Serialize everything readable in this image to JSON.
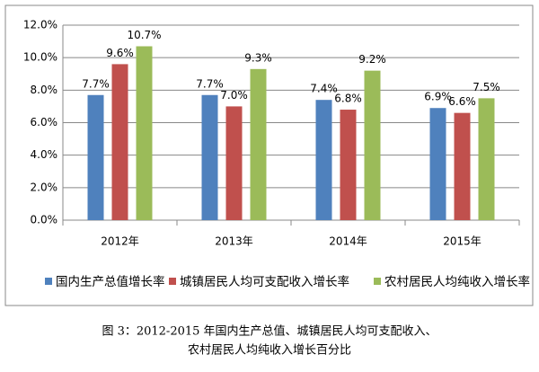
{
  "chart_data": {
    "type": "bar",
    "categories": [
      "2012年",
      "2013年",
      "2014年",
      "2015年"
    ],
    "series": [
      {
        "name": "国内生产总值增长率",
        "color": "#4f81bd",
        "values": [
          7.7,
          7.7,
          7.4,
          6.9
        ],
        "value_labels": [
          "7.7%",
          "7.7%",
          "7.4%",
          "6.9%"
        ]
      },
      {
        "name": "城镇居民人均可支配收入增长率",
        "color": "#c0504d",
        "values": [
          9.6,
          7.0,
          6.8,
          6.6
        ],
        "value_labels": [
          "9.6%",
          "7.0%",
          "6.8%",
          "6.6%"
        ]
      },
      {
        "name": "农村居民人均纯收入增长率",
        "color": "#9bbb59",
        "values": [
          10.7,
          9.3,
          9.2,
          7.5
        ],
        "value_labels": [
          "10.7%",
          "9.3%",
          "9.2%",
          "7.5%"
        ]
      }
    ],
    "ylim": [
      0,
      12
    ],
    "yticks": [
      {
        "value": 0,
        "label": "0.0%"
      },
      {
        "value": 2,
        "label": "2.0%"
      },
      {
        "value": 4,
        "label": "4.0%"
      },
      {
        "value": 6,
        "label": "6.0%"
      },
      {
        "value": 8,
        "label": "8.0%"
      },
      {
        "value": 10,
        "label": "10.0%"
      },
      {
        "value": 12,
        "label": "12.0%"
      }
    ],
    "grid": true,
    "legend": "bottom",
    "caption": [
      "图 3：2012-2015 年国内生产总值、城镇居民人均可支配收入、",
      "农村居民人均纯收入增长百分比"
    ]
  }
}
